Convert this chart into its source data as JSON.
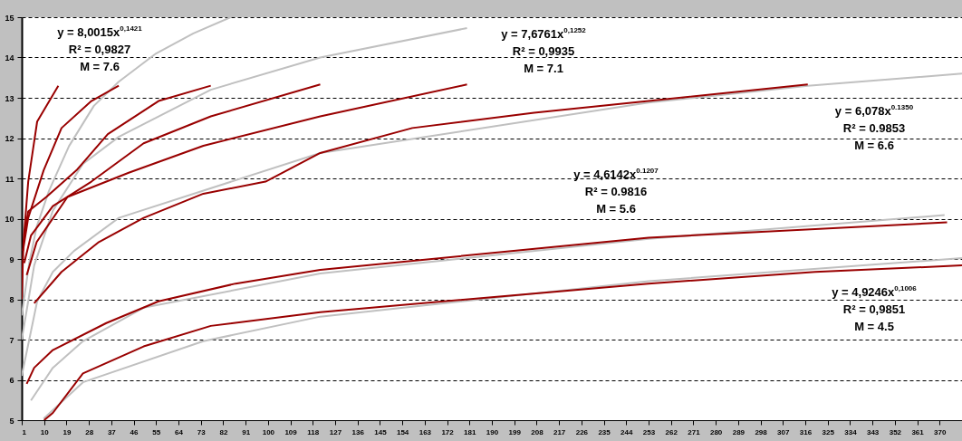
{
  "chart_data": {
    "type": "line",
    "xlim": [
      1,
      379
    ],
    "xticks": [
      1,
      10,
      19,
      28,
      37,
      46,
      55,
      64,
      73,
      82,
      91,
      100,
      109,
      118,
      127,
      136,
      145,
      154,
      163,
      172,
      181,
      190,
      199,
      208,
      217,
      226,
      235,
      244,
      253,
      262,
      271,
      280,
      289,
      298,
      307,
      316,
      325,
      334,
      343,
      352,
      361,
      370
    ],
    "ylim": [
      5,
      15
    ],
    "yticks": [
      5,
      6,
      7,
      8,
      9,
      10,
      11,
      12,
      13,
      14,
      15
    ],
    "grid": "y",
    "legend": false,
    "series": [
      {
        "color": "#c0c0c0",
        "x": [
          1,
          4,
          7,
          12,
          20,
          30,
          40,
          55,
          70,
          85
        ],
        "values": [
          7.6,
          8.9,
          9.8,
          10.7,
          11.8,
          12.8,
          13.4,
          14.1,
          14.6,
          15
        ]
      },
      {
        "color": "#c0c0c0",
        "x": [
          1,
          3.6,
          6,
          13.5,
          25.6,
          40,
          77,
          121,
          180
        ],
        "values": [
          7.0,
          7.95,
          8.84,
          10.2,
          11.36,
          12.03,
          13.2,
          14,
          14.73
        ]
      },
      {
        "color": "#c0c0c0",
        "x": [
          1,
          7.2,
          13.5,
          22,
          40,
          121,
          253,
          317,
          379
        ],
        "values": [
          6.1,
          7.95,
          8.68,
          9.2,
          10.02,
          11.63,
          12.88,
          13.3,
          13.6
        ]
      },
      {
        "color": "#c0c0c0",
        "x": [
          4.7,
          13.5,
          25.6,
          50,
          121,
          253,
          372
        ],
        "values": [
          5.49,
          6.3,
          6.96,
          7.79,
          8.64,
          9.5,
          10.09
        ]
      },
      {
        "color": "#c0c0c0",
        "x": [
          9.8,
          25.6,
          74,
          121,
          253,
          379
        ],
        "values": [
          5.04,
          5.94,
          6.96,
          7.57,
          8.45,
          9.02
        ]
      },
      {
        "color": "#990000",
        "x": [
          10,
          13.5,
          25.6,
          50,
          77,
          121,
          253,
          320,
          379
        ],
        "values": [
          5.0,
          5.18,
          6.16,
          6.83,
          7.34,
          7.68,
          8.39,
          8.68,
          8.84
        ]
      },
      {
        "color": "#990000",
        "x": [
          3,
          6,
          13.5,
          35,
          56,
          87,
          121,
          253,
          373
        ],
        "values": [
          5.9,
          6.3,
          6.74,
          7.41,
          7.95,
          8.39,
          8.73,
          9.53,
          9.91
        ]
      },
      {
        "color": "#990000",
        "x": [
          6,
          17,
          32,
          50,
          74,
          99,
          121,
          158,
          207,
          253,
          317
        ],
        "values": [
          7.9,
          8.68,
          9.42,
          10.02,
          10.62,
          10.92,
          11.63,
          12.25,
          12.63,
          12.92,
          13.33
        ]
      },
      {
        "color": "#990000",
        "x": [
          3,
          7,
          19.4,
          44,
          74,
          121,
          180
        ],
        "values": [
          8.6,
          9.42,
          10.54,
          11.14,
          11.81,
          12.54,
          13.33
        ]
      },
      {
        "color": "#990000",
        "x": [
          2,
          4.7,
          13.5,
          29,
          50,
          77,
          121
        ],
        "values": [
          8.9,
          9.58,
          10.31,
          10.92,
          11.87,
          12.54,
          13.33
        ]
      },
      {
        "color": "#990000",
        "x": [
          2,
          3.6,
          10.9,
          23,
          35.6,
          56,
          77
        ],
        "values": [
          9.6,
          10.18,
          10.54,
          11.2,
          12.1,
          12.92,
          13.3
        ]
      },
      {
        "color": "#990000",
        "x": [
          1.5,
          3.6,
          9.8,
          17,
          29,
          40
        ],
        "values": [
          9.2,
          10.02,
          11.2,
          12.25,
          12.92,
          13.3
        ]
      },
      {
        "color": "#990000",
        "x": [
          1,
          1.7,
          3.6,
          7.2,
          15.7
        ],
        "values": [
          8.0,
          9.42,
          10.92,
          12.41,
          13.3
        ]
      }
    ],
    "annotations": [
      "y = 8,0015x$^{0,1421}$",
      "R² = 0,9827",
      "M = 7.6",
      "y = 7,6761x$^{0,1252}$",
      "R² = 0,9935",
      "M = 7.1",
      "y = 6,078x$^{0.1350}$",
      "R² = 0.9853",
      "M = 6.6",
      "y = 4,6142x$^{0.1207}$",
      "R² = 0.9816",
      "M = 5.6",
      "y = 4,9246x$^{0,1006}$",
      "R² = 0,9851",
      "M = 4.5"
    ]
  }
}
